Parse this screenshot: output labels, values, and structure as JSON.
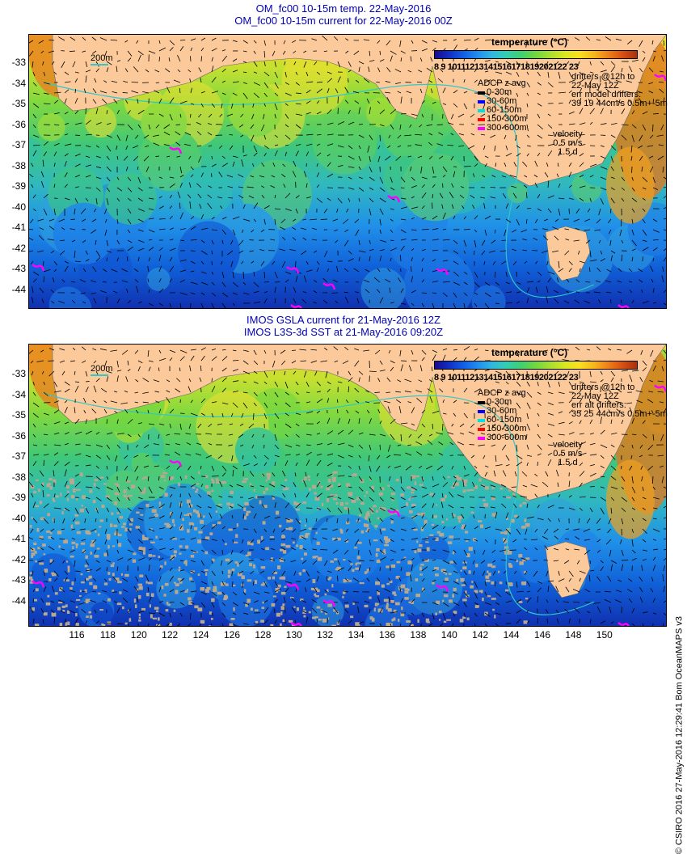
{
  "top": {
    "title_line1": "OM_fc00 10-15m temp. 22-May-2016",
    "title_line2": "OM_fc00 10-15m current for 22-May-2016 00Z",
    "drifters": [
      "drifters @12h to",
      "22-May 12Z",
      "err model drifters:",
      "39 19 44cm/s 0.5m+-5m"
    ],
    "speckle": false
  },
  "bottom": {
    "title_line1": "IMOS GSLA current for 21-May-2016 12Z",
    "title_line2": "IMOS L3S-3d SST at 21-May-2016 09:20Z",
    "drifters": [
      "drifters @12h to",
      "22-May 12Z",
      "err alt drifters:",
      "35 25 44cm/s 0.5m+-5m"
    ],
    "speckle": true
  },
  "colorbar": {
    "title": "temperature (°C)",
    "labels": "8  9 10111213141516171819202122 23"
  },
  "adcp_legend": {
    "title": "ADCP z avg",
    "items": [
      {
        "label": "0-30m",
        "color": "#000000"
      },
      {
        "label": "30-60m",
        "color": "#0000ff"
      },
      {
        "label": "60-150m",
        "color": "#00e0e0"
      },
      {
        "label": "150-300m",
        "color": "#ff0000"
      },
      {
        "label": "300-600m",
        "color": "#ff00ff"
      }
    ]
  },
  "velocity": {
    "label": "velocity",
    "value": "0.5 m/s",
    "time": "1.5 d"
  },
  "isobath_label": "200m",
  "latitudes": [
    "-33",
    "-34",
    "-35",
    "-36",
    "-37",
    "-38",
    "-39",
    "-40",
    "-41",
    "-42",
    "-43",
    "-44"
  ],
  "longitudes": [
    "116",
    "118",
    "120",
    "122",
    "124",
    "126",
    "128",
    "130",
    "132",
    "134",
    "136",
    "138",
    "140",
    "142",
    "144",
    "146",
    "148",
    "150"
  ],
  "credit": "© CSIRO 2016  27-May-2016 12:29:41  Bom OceanMAPS v3",
  "colors": {
    "land": "#fbc99a",
    "title": "#0000b4",
    "drifter": "#ff00ff",
    "isobath": "#30c8c8"
  }
}
